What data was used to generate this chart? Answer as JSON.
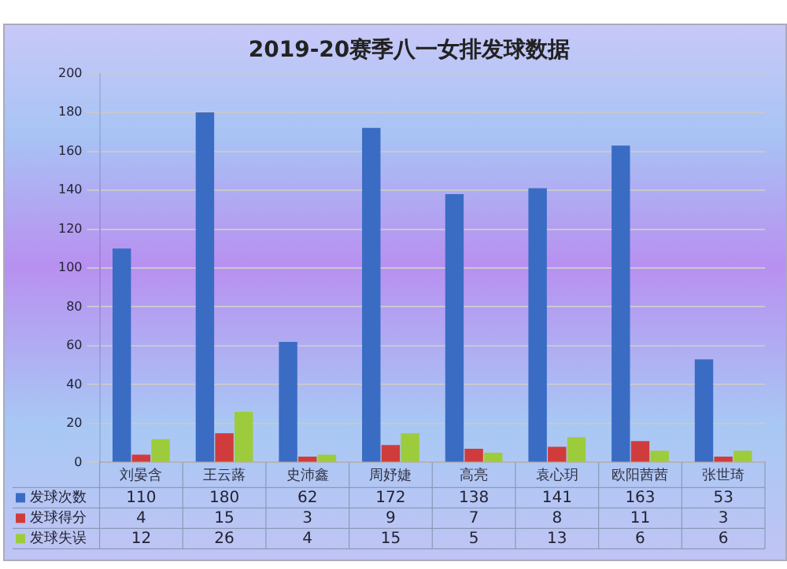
{
  "chart_data": {
    "type": "bar",
    "title": "2019-20赛季八一女排发球数据",
    "categories": [
      "刘晏含",
      "王云蕗",
      "史沛鑫",
      "周妤婕",
      "高亮",
      "袁心玥",
      "欧阳茜茜",
      "张世琦"
    ],
    "series": [
      {
        "name": "发球次数",
        "color": "#3a6cc4",
        "values": [
          110,
          180,
          62,
          172,
          138,
          141,
          163,
          53
        ]
      },
      {
        "name": "发球得分",
        "color": "#d03c3c",
        "values": [
          4,
          15,
          3,
          9,
          7,
          8,
          11,
          3
        ]
      },
      {
        "name": "发球失误",
        "color": "#9ccc3c",
        "values": [
          12,
          26,
          4,
          15,
          5,
          13,
          6,
          6
        ]
      }
    ],
    "ylim": [
      0,
      200
    ],
    "yticks": [
      0,
      20,
      40,
      60,
      80,
      100,
      120,
      140,
      160,
      180,
      200
    ],
    "grid": "y",
    "data_labels": true,
    "legend": "bottom left"
  }
}
